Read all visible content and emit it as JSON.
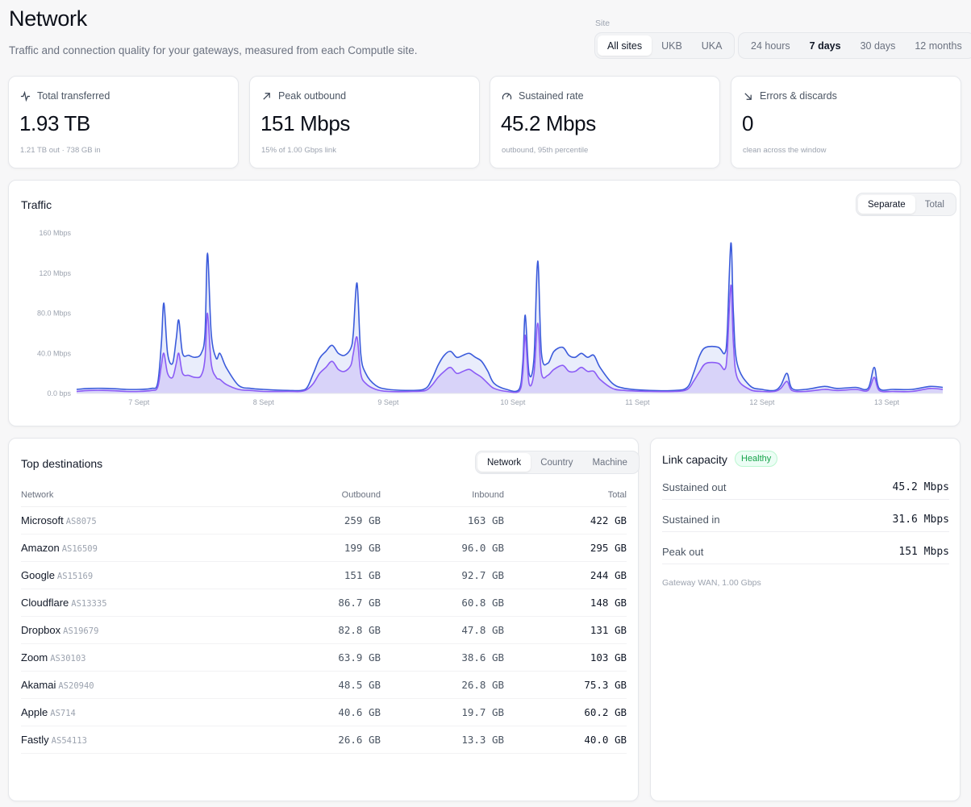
{
  "header": {
    "title": "Network",
    "subtitle": "Traffic and connection quality for your gateways, measured from each Computle site."
  },
  "filters": {
    "site_label": "Site",
    "sites": [
      "All sites",
      "UKB",
      "UKA"
    ],
    "site_selected": "All sites",
    "ranges": [
      "24 hours",
      "7 days",
      "30 days",
      "12 months"
    ],
    "range_selected": "7 days"
  },
  "stats": [
    {
      "icon": "pulse-icon",
      "label": "Total transferred",
      "value": "1.93 TB",
      "note": "1.21 TB out · 738 GB in"
    },
    {
      "icon": "arrow-up-right-icon",
      "label": "Peak outbound",
      "value": "151 Mbps",
      "note": "15% of 1.00 Gbps link"
    },
    {
      "icon": "gauge-icon",
      "label": "Sustained rate",
      "value": "45.2 Mbps",
      "note": "outbound, 95th percentile"
    },
    {
      "icon": "arrow-down-right-icon",
      "label": "Errors & discards",
      "value": "0",
      "note": "clean across the window"
    }
  ],
  "traffic": {
    "title": "Traffic",
    "modes": [
      "Separate",
      "Total"
    ],
    "mode_selected": "Separate"
  },
  "chart_data": {
    "type": "area",
    "y_tick_labels": [
      "0.0 bps",
      "40.0 Mbps",
      "80.0 Mbps",
      "120 Mbps",
      "160 Mbps"
    ],
    "ylim": [
      0,
      160
    ],
    "xlim": [
      6.5,
      13.45
    ],
    "x_tick_labels": [
      "7 Sept",
      "8 Sept",
      "9 Sept",
      "10 Sept",
      "11 Sept",
      "12 Sept",
      "13 Sept"
    ],
    "x_ticks": [
      7,
      8,
      9,
      10,
      11,
      12,
      13
    ],
    "grid": false,
    "colors": {
      "series_a": "#3b5bdb",
      "series_b": "#8b5cf6"
    },
    "series": [
      {
        "points": [
          [
            6.5,
            4
          ],
          [
            6.6,
            5
          ],
          [
            6.75,
            5
          ],
          [
            6.9,
            4
          ],
          [
            7.0,
            4
          ],
          [
            7.1,
            5
          ],
          [
            7.15,
            10
          ],
          [
            7.18,
            50
          ],
          [
            7.2,
            90
          ],
          [
            7.23,
            40
          ],
          [
            7.27,
            30
          ],
          [
            7.3,
            55
          ],
          [
            7.32,
            73
          ],
          [
            7.35,
            40
          ],
          [
            7.4,
            38
          ],
          [
            7.45,
            36
          ],
          [
            7.5,
            40
          ],
          [
            7.53,
            60
          ],
          [
            7.55,
            140
          ],
          [
            7.58,
            60
          ],
          [
            7.62,
            35
          ],
          [
            7.65,
            40
          ],
          [
            7.7,
            26
          ],
          [
            7.8,
            8
          ],
          [
            7.9,
            5
          ],
          [
            8.0,
            4
          ],
          [
            8.2,
            3
          ],
          [
            8.3,
            3
          ],
          [
            8.35,
            6
          ],
          [
            8.4,
            20
          ],
          [
            8.45,
            35
          ],
          [
            8.5,
            42
          ],
          [
            8.55,
            48
          ],
          [
            8.6,
            40
          ],
          [
            8.65,
            38
          ],
          [
            8.7,
            45
          ],
          [
            8.72,
            60
          ],
          [
            8.75,
            110
          ],
          [
            8.78,
            40
          ],
          [
            8.82,
            20
          ],
          [
            8.9,
            8
          ],
          [
            9.0,
            4
          ],
          [
            9.2,
            3
          ],
          [
            9.3,
            5
          ],
          [
            9.35,
            14
          ],
          [
            9.4,
            28
          ],
          [
            9.45,
            38
          ],
          [
            9.5,
            42
          ],
          [
            9.55,
            36
          ],
          [
            9.6,
            38
          ],
          [
            9.65,
            40
          ],
          [
            9.7,
            36
          ],
          [
            9.75,
            32
          ],
          [
            9.8,
            22
          ],
          [
            9.85,
            10
          ],
          [
            9.95,
            4
          ],
          [
            10.05,
            4
          ],
          [
            10.08,
            30
          ],
          [
            10.1,
            78
          ],
          [
            10.13,
            20
          ],
          [
            10.17,
            35
          ],
          [
            10.2,
            132
          ],
          [
            10.23,
            40
          ],
          [
            10.28,
            30
          ],
          [
            10.33,
            42
          ],
          [
            10.4,
            46
          ],
          [
            10.45,
            38
          ],
          [
            10.5,
            36
          ],
          [
            10.55,
            40
          ],
          [
            10.6,
            36
          ],
          [
            10.65,
            38
          ],
          [
            10.7,
            26
          ],
          [
            10.8,
            10
          ],
          [
            10.9,
            5
          ],
          [
            11.1,
            3
          ],
          [
            11.3,
            3
          ],
          [
            11.4,
            6
          ],
          [
            11.45,
            20
          ],
          [
            11.5,
            38
          ],
          [
            11.55,
            46
          ],
          [
            11.65,
            46
          ],
          [
            11.7,
            40
          ],
          [
            11.72,
            60
          ],
          [
            11.75,
            150
          ],
          [
            11.77,
            80
          ],
          [
            11.8,
            30
          ],
          [
            11.9,
            8
          ],
          [
            12.0,
            4
          ],
          [
            12.1,
            3
          ],
          [
            12.15,
            8
          ],
          [
            12.2,
            20
          ],
          [
            12.24,
            5
          ],
          [
            12.35,
            4
          ],
          [
            12.5,
            7
          ],
          [
            12.6,
            5
          ],
          [
            12.75,
            6
          ],
          [
            12.85,
            5
          ],
          [
            12.9,
            26
          ],
          [
            12.94,
            5
          ],
          [
            13.05,
            4
          ],
          [
            13.2,
            4
          ],
          [
            13.35,
            7
          ],
          [
            13.45,
            6
          ]
        ]
      },
      {
        "points": [
          [
            6.5,
            2
          ],
          [
            6.6,
            3
          ],
          [
            6.75,
            3
          ],
          [
            6.9,
            2
          ],
          [
            7.0,
            2
          ],
          [
            7.1,
            3
          ],
          [
            7.15,
            6
          ],
          [
            7.18,
            28
          ],
          [
            7.2,
            40
          ],
          [
            7.23,
            20
          ],
          [
            7.27,
            16
          ],
          [
            7.3,
            30
          ],
          [
            7.32,
            40
          ],
          [
            7.35,
            20
          ],
          [
            7.4,
            18
          ],
          [
            7.45,
            16
          ],
          [
            7.5,
            18
          ],
          [
            7.53,
            35
          ],
          [
            7.55,
            80
          ],
          [
            7.58,
            30
          ],
          [
            7.62,
            16
          ],
          [
            7.65,
            14
          ],
          [
            7.7,
            9
          ],
          [
            7.8,
            4
          ],
          [
            7.9,
            3
          ],
          [
            8.0,
            2
          ],
          [
            8.2,
            2
          ],
          [
            8.3,
            2
          ],
          [
            8.35,
            4
          ],
          [
            8.4,
            10
          ],
          [
            8.45,
            20
          ],
          [
            8.5,
            26
          ],
          [
            8.55,
            32
          ],
          [
            8.6,
            24
          ],
          [
            8.65,
            22
          ],
          [
            8.7,
            28
          ],
          [
            8.72,
            40
          ],
          [
            8.75,
            56
          ],
          [
            8.78,
            20
          ],
          [
            8.82,
            10
          ],
          [
            8.9,
            4
          ],
          [
            9.0,
            2
          ],
          [
            9.2,
            2
          ],
          [
            9.3,
            3
          ],
          [
            9.35,
            8
          ],
          [
            9.4,
            16
          ],
          [
            9.45,
            22
          ],
          [
            9.5,
            26
          ],
          [
            9.55,
            20
          ],
          [
            9.6,
            22
          ],
          [
            9.65,
            24
          ],
          [
            9.7,
            20
          ],
          [
            9.75,
            16
          ],
          [
            9.8,
            10
          ],
          [
            9.85,
            5
          ],
          [
            9.95,
            2
          ],
          [
            10.05,
            2
          ],
          [
            10.08,
            20
          ],
          [
            10.1,
            58
          ],
          [
            10.13,
            10
          ],
          [
            10.17,
            20
          ],
          [
            10.2,
            70
          ],
          [
            10.23,
            20
          ],
          [
            10.28,
            18
          ],
          [
            10.33,
            24
          ],
          [
            10.4,
            28
          ],
          [
            10.45,
            22
          ],
          [
            10.5,
            22
          ],
          [
            10.55,
            26
          ],
          [
            10.6,
            22
          ],
          [
            10.65,
            22
          ],
          [
            10.7,
            14
          ],
          [
            10.8,
            5
          ],
          [
            10.9,
            3
          ],
          [
            11.1,
            2
          ],
          [
            11.3,
            2
          ],
          [
            11.4,
            4
          ],
          [
            11.45,
            12
          ],
          [
            11.5,
            22
          ],
          [
            11.55,
            30
          ],
          [
            11.65,
            30
          ],
          [
            11.7,
            24
          ],
          [
            11.72,
            40
          ],
          [
            11.75,
            108
          ],
          [
            11.77,
            50
          ],
          [
            11.8,
            16
          ],
          [
            11.9,
            4
          ],
          [
            12.0,
            2
          ],
          [
            12.1,
            2
          ],
          [
            12.15,
            5
          ],
          [
            12.2,
            12
          ],
          [
            12.24,
            3
          ],
          [
            12.35,
            2
          ],
          [
            12.5,
            4
          ],
          [
            12.6,
            3
          ],
          [
            12.75,
            4
          ],
          [
            12.85,
            3
          ],
          [
            12.9,
            16
          ],
          [
            12.94,
            3
          ],
          [
            13.05,
            2
          ],
          [
            13.2,
            2
          ],
          [
            13.35,
            5
          ],
          [
            13.45,
            4
          ]
        ]
      }
    ]
  },
  "destinations": {
    "title": "Top destinations",
    "tabs": [
      "Network",
      "Country",
      "Machine"
    ],
    "tab_selected": "Network",
    "columns": [
      "Network",
      "Outbound",
      "Inbound",
      "Total"
    ],
    "rows": [
      {
        "name": "Microsoft",
        "asn": "AS8075",
        "outbound": "259 GB",
        "inbound": "163 GB",
        "total": "422 GB"
      },
      {
        "name": "Amazon",
        "asn": "AS16509",
        "outbound": "199 GB",
        "inbound": "96.0 GB",
        "total": "295 GB"
      },
      {
        "name": "Google",
        "asn": "AS15169",
        "outbound": "151 GB",
        "inbound": "92.7 GB",
        "total": "244 GB"
      },
      {
        "name": "Cloudflare",
        "asn": "AS13335",
        "outbound": "86.7 GB",
        "inbound": "60.8 GB",
        "total": "148 GB"
      },
      {
        "name": "Dropbox",
        "asn": "AS19679",
        "outbound": "82.8 GB",
        "inbound": "47.8 GB",
        "total": "131 GB"
      },
      {
        "name": "Zoom",
        "asn": "AS30103",
        "outbound": "63.9 GB",
        "inbound": "38.6 GB",
        "total": "103 GB"
      },
      {
        "name": "Akamai",
        "asn": "AS20940",
        "outbound": "48.5 GB",
        "inbound": "26.8 GB",
        "total": "75.3 GB"
      },
      {
        "name": "Apple",
        "asn": "AS714",
        "outbound": "40.6 GB",
        "inbound": "19.7 GB",
        "total": "60.2 GB"
      },
      {
        "name": "Fastly",
        "asn": "AS54113",
        "outbound": "26.6 GB",
        "inbound": "13.3 GB",
        "total": "40.0 GB"
      }
    ]
  },
  "capacity": {
    "title": "Link capacity",
    "status": "Healthy",
    "rows": [
      {
        "label": "Sustained out",
        "value": "45.2 Mbps"
      },
      {
        "label": "Sustained in",
        "value": "31.6 Mbps"
      },
      {
        "label": "Peak out",
        "value": "151 Mbps"
      }
    ],
    "note": "Gateway WAN, 1.00 Gbps"
  }
}
